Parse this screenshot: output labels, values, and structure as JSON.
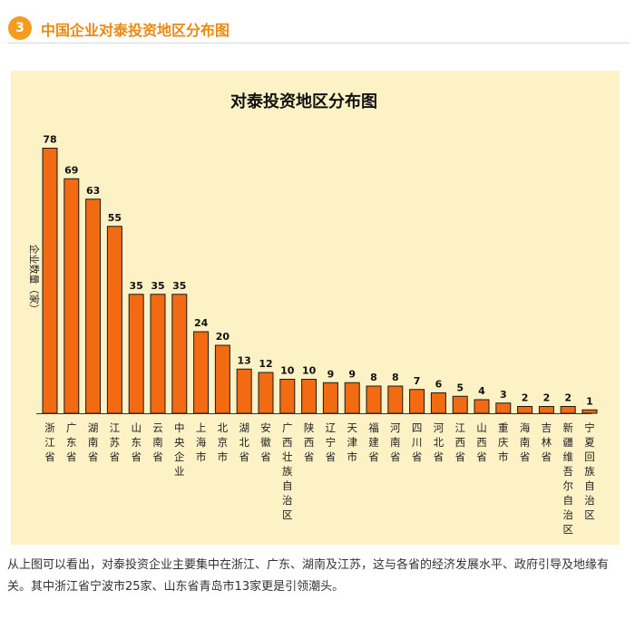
{
  "header": {
    "number": "3",
    "title": "中国企业对泰投资地区分布图"
  },
  "chart_data": {
    "type": "bar",
    "title": "对泰投资地区分布图",
    "ylabel": "企业数量（家）",
    "xlabel": "",
    "ylim": [
      0,
      80
    ],
    "categories": [
      "浙江省",
      "广东省",
      "湖南省",
      "江苏省",
      "山东省",
      "云南省",
      "中央企业",
      "上海市",
      "北京市",
      "湖北省",
      "安徽省",
      "广西壮族自治区",
      "陕西省",
      "辽宁省",
      "天津市",
      "福建省",
      "河南省",
      "四川省",
      "河北省",
      "江西省",
      "山西省",
      "重庆市",
      "海南省",
      "吉林省",
      "新疆维吾尔自治区",
      "宁夏回族自治区"
    ],
    "values": [
      78,
      69,
      63,
      55,
      35,
      35,
      35,
      24,
      20,
      13,
      12,
      10,
      10,
      9,
      9,
      8,
      8,
      7,
      6,
      5,
      4,
      3,
      2,
      2,
      2,
      1
    ],
    "bar_color": "#f26a12",
    "bar_edge_color": "#1a1a1a",
    "background_color": "#fdf2c6",
    "grid": false,
    "legend": false,
    "data_labels": true
  },
  "caption": "从上图可以看出，对泰投资企业主要集中在浙江、广东、湖南及江苏，这与各省的经济发展水平、政府引导及地缘有关。其中浙江省宁波市25家、山东省青岛市13家更是引领潮头。"
}
